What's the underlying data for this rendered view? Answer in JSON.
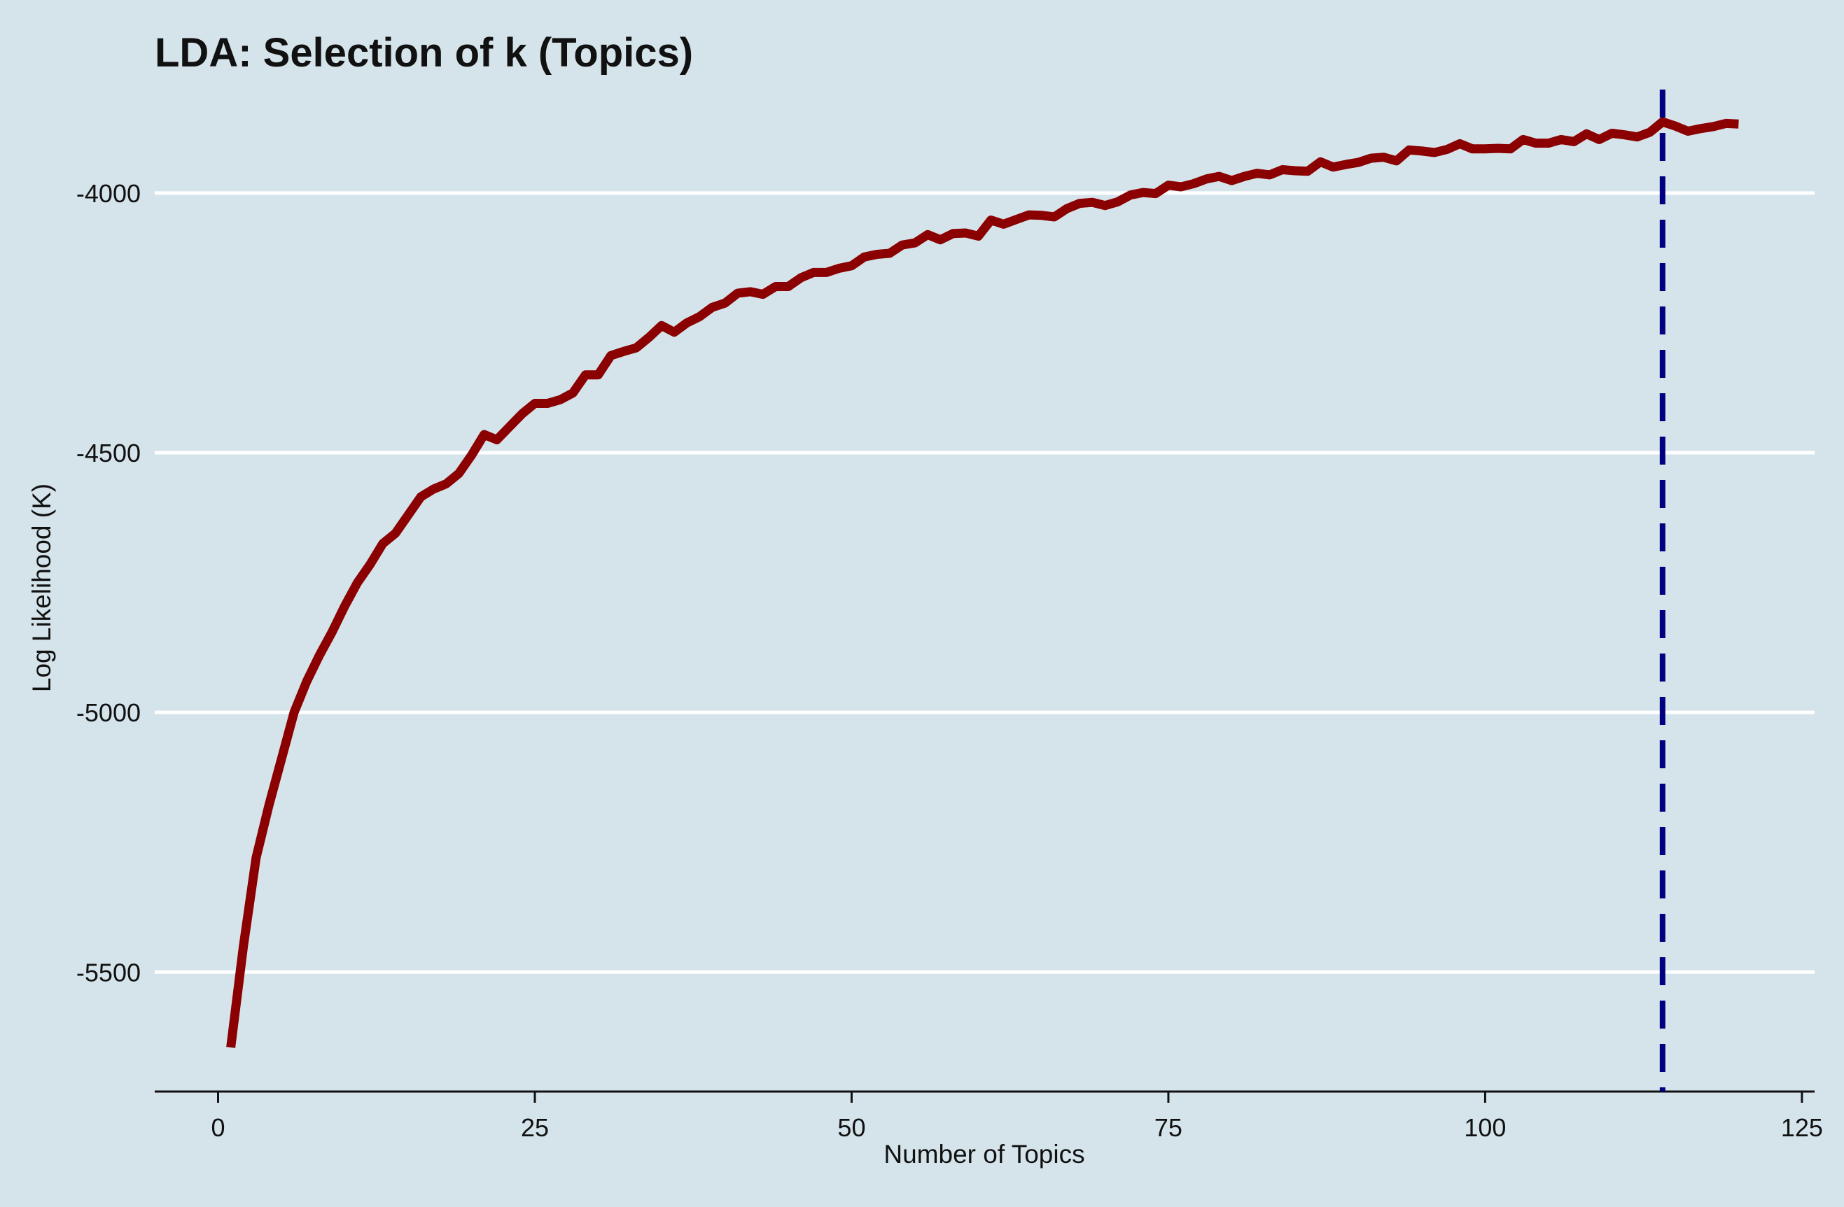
{
  "chart_data": {
    "type": "line",
    "title": "LDA: Selection of k (Topics)",
    "xlabel": "Number of Topics",
    "ylabel": "Log Likelihood (K)",
    "xlim": [
      -5,
      126
    ],
    "ylim": [
      -5730,
      -3790
    ],
    "x_ticks": [
      0,
      25,
      50,
      75,
      100,
      125
    ],
    "x_tick_labels": [
      "0",
      "25",
      "50",
      "75",
      "100",
      "125"
    ],
    "y_ticks": [
      -4000,
      -4500,
      -5000,
      -5500
    ],
    "y_tick_labels": [
      "-4000",
      "-4500",
      "-5000",
      "-5500"
    ],
    "grid": "horizontal major lines only",
    "background_color": "#d5e4eb",
    "grid_color": "#ffffff",
    "line_color": "#8b0000",
    "reference_line_color": "#000080",
    "reference_line": {
      "x": 114,
      "style": "dashed"
    },
    "series": [
      {
        "x": [
          1,
          2,
          3,
          4,
          5,
          6,
          7,
          8,
          9,
          10,
          11,
          12,
          13,
          14,
          15,
          16,
          17,
          18,
          19,
          20,
          21,
          22,
          23,
          24,
          25,
          26,
          27,
          28,
          29,
          30,
          31,
          32,
          33,
          34,
          35,
          36,
          37,
          38,
          39,
          40,
          41,
          42,
          43,
          44,
          45,
          46,
          47,
          48,
          49,
          50,
          51,
          52,
          53,
          54,
          55,
          56,
          57,
          58,
          59,
          60,
          61,
          62,
          63,
          64,
          65,
          66,
          67,
          68,
          69,
          70,
          71,
          72,
          73,
          74,
          75,
          76,
          77,
          78,
          79,
          80,
          81,
          82,
          83,
          84,
          85,
          86,
          87,
          88,
          89,
          90,
          91,
          92,
          93,
          94,
          95,
          96,
          97,
          98,
          99,
          100,
          101,
          102,
          103,
          104,
          105,
          106,
          107,
          108,
          109,
          110,
          111,
          112,
          113,
          114,
          115,
          116,
          117,
          118,
          119,
          120
        ],
        "values": [
          -5645,
          -5450,
          -5280,
          -5180,
          -5090,
          -5000,
          -4940,
          -4890,
          -4845,
          -4795,
          -4750,
          -4715,
          -4675,
          -4655,
          -4620,
          -4585,
          -4570,
          -4560,
          -4540,
          -4505,
          -4465,
          -4475,
          -4450,
          -4425,
          -4405,
          -4405,
          -4398,
          -4385,
          -4350,
          -4350,
          -4313,
          -4305,
          -4298,
          -4278,
          -4255,
          -4268,
          -4250,
          -4238,
          -4220,
          -4212,
          -4193,
          -4190,
          -4195,
          -4180,
          -4180,
          -4163,
          -4153,
          -4153,
          -4145,
          -4140,
          -4123,
          -4118,
          -4116,
          -4100,
          -4096,
          -4080,
          -4090,
          -4078,
          -4077,
          -4083,
          -4052,
          -4060,
          -4051,
          -4042,
          -4043,
          -4046,
          -4030,
          -4020,
          -4018,
          -4024,
          -4017,
          -4004,
          -3999,
          -4001,
          -3985,
          -3988,
          -3982,
          -3973,
          -3968,
          -3976,
          -3968,
          -3962,
          -3965,
          -3955,
          -3957,
          -3958,
          -3940,
          -3950,
          -3945,
          -3941,
          -3933,
          -3931,
          -3938,
          -3917,
          -3919,
          -3922,
          -3916,
          -3905,
          -3915,
          -3915,
          -3914,
          -3915,
          -3897,
          -3904,
          -3904,
          -3897,
          -3901,
          -3886,
          -3897,
          -3885,
          -3888,
          -3892,
          -3883,
          -3863,
          -3871,
          -3881,
          -3876,
          -3872,
          -3866,
          -3867
        ]
      }
    ]
  }
}
